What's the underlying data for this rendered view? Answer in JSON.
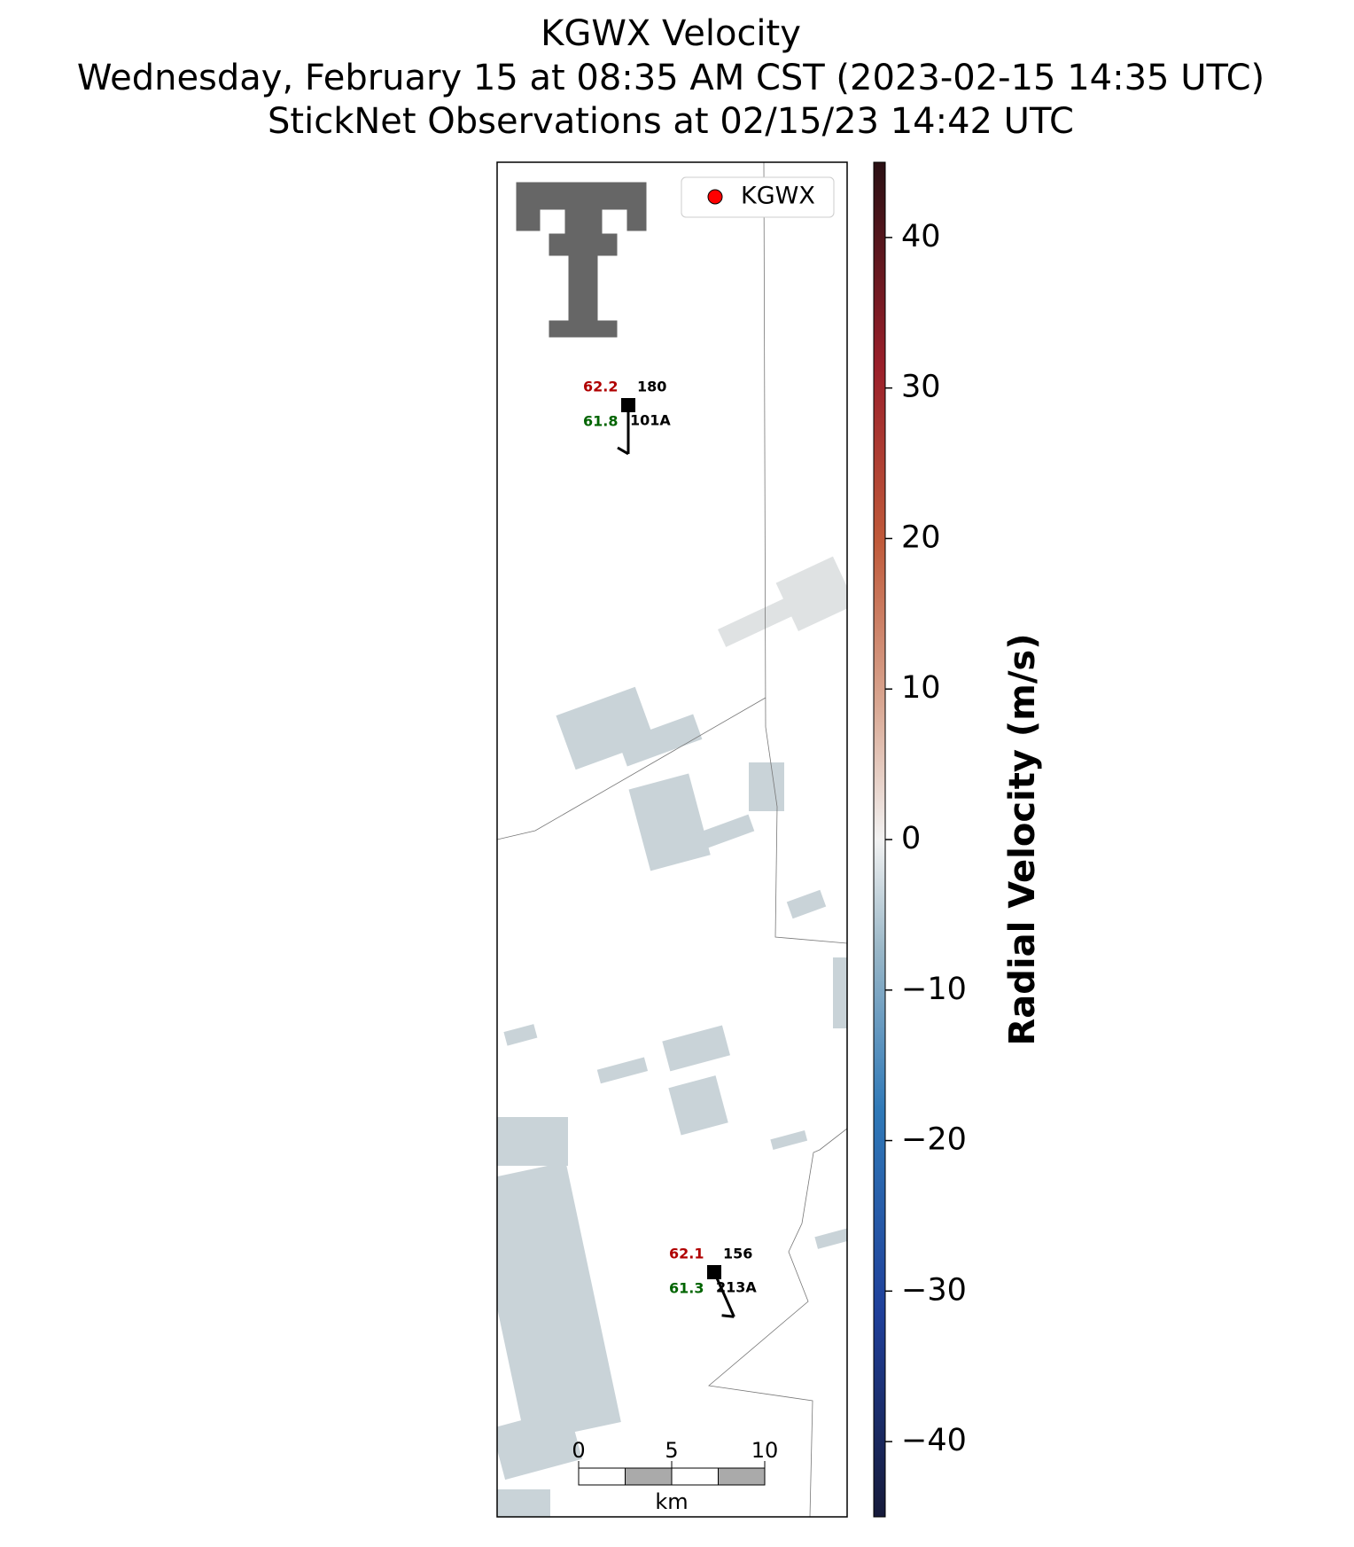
{
  "title": {
    "line1": "KGWX Velocity",
    "line2": "Wednesday, February 15 at 08:35 AM CST (2023-02-15 14:35 UTC)",
    "line3": "StickNet Observations at 02/15/23 14:42 UTC"
  },
  "legend": {
    "label": "KGWX"
  },
  "stations": [
    {
      "id": "101A",
      "temperature": 62.2,
      "dewpoint": 61.8,
      "wind_direction": 180
    },
    {
      "id": "213A",
      "temperature": 62.1,
      "dewpoint": 61.3,
      "wind_direction": 156
    }
  ],
  "scale_bar": {
    "ticks": [
      0,
      5,
      10
    ],
    "unit": "km"
  },
  "colorbar": {
    "label": "Radial Velocity (m/s)",
    "lim": [
      -45,
      45
    ],
    "ticks": [
      {
        "value": -40,
        "label": "−40"
      },
      {
        "value": -30,
        "label": "−30"
      },
      {
        "value": -20,
        "label": "−20"
      },
      {
        "value": -10,
        "label": "−10"
      },
      0,
      10,
      20,
      30,
      40
    ]
  }
}
